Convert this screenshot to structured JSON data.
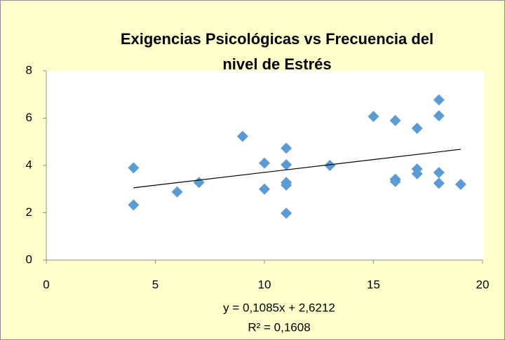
{
  "chart_data": {
    "type": "scatter",
    "title": [
      "Exigencias Psicológicas vs Frecuencia del",
      "nivel de  Estrés"
    ],
    "series": [
      {
        "color": "#5b9bd5",
        "x": [
          4,
          4,
          6,
          7,
          9,
          10,
          10,
          11,
          11,
          11,
          11,
          11,
          13,
          15,
          16,
          16,
          16,
          17,
          17,
          17,
          18,
          18,
          18,
          18,
          19
        ],
        "values": [
          3.9,
          2.33,
          2.88,
          3.28,
          5.23,
          4.1,
          3.0,
          4.73,
          4.03,
          3.28,
          3.17,
          1.98,
          4.0,
          6.07,
          5.9,
          3.42,
          3.32,
          5.57,
          3.85,
          3.65,
          6.77,
          6.1,
          3.7,
          3.25,
          3.2
        ]
      }
    ],
    "trendline": {
      "slope": 0.1085,
      "intercept": 2.6212,
      "color": "#000000",
      "equation": "y = 0,1085x + 2,6212",
      "r_squared": "R² = 0,1608"
    },
    "xlim": [
      0,
      20
    ],
    "xticks": [
      0,
      5,
      10,
      15,
      20
    ],
    "ylim": [
      0,
      8
    ],
    "yticks": [
      0,
      2,
      4,
      6,
      8
    ],
    "grid": false
  }
}
